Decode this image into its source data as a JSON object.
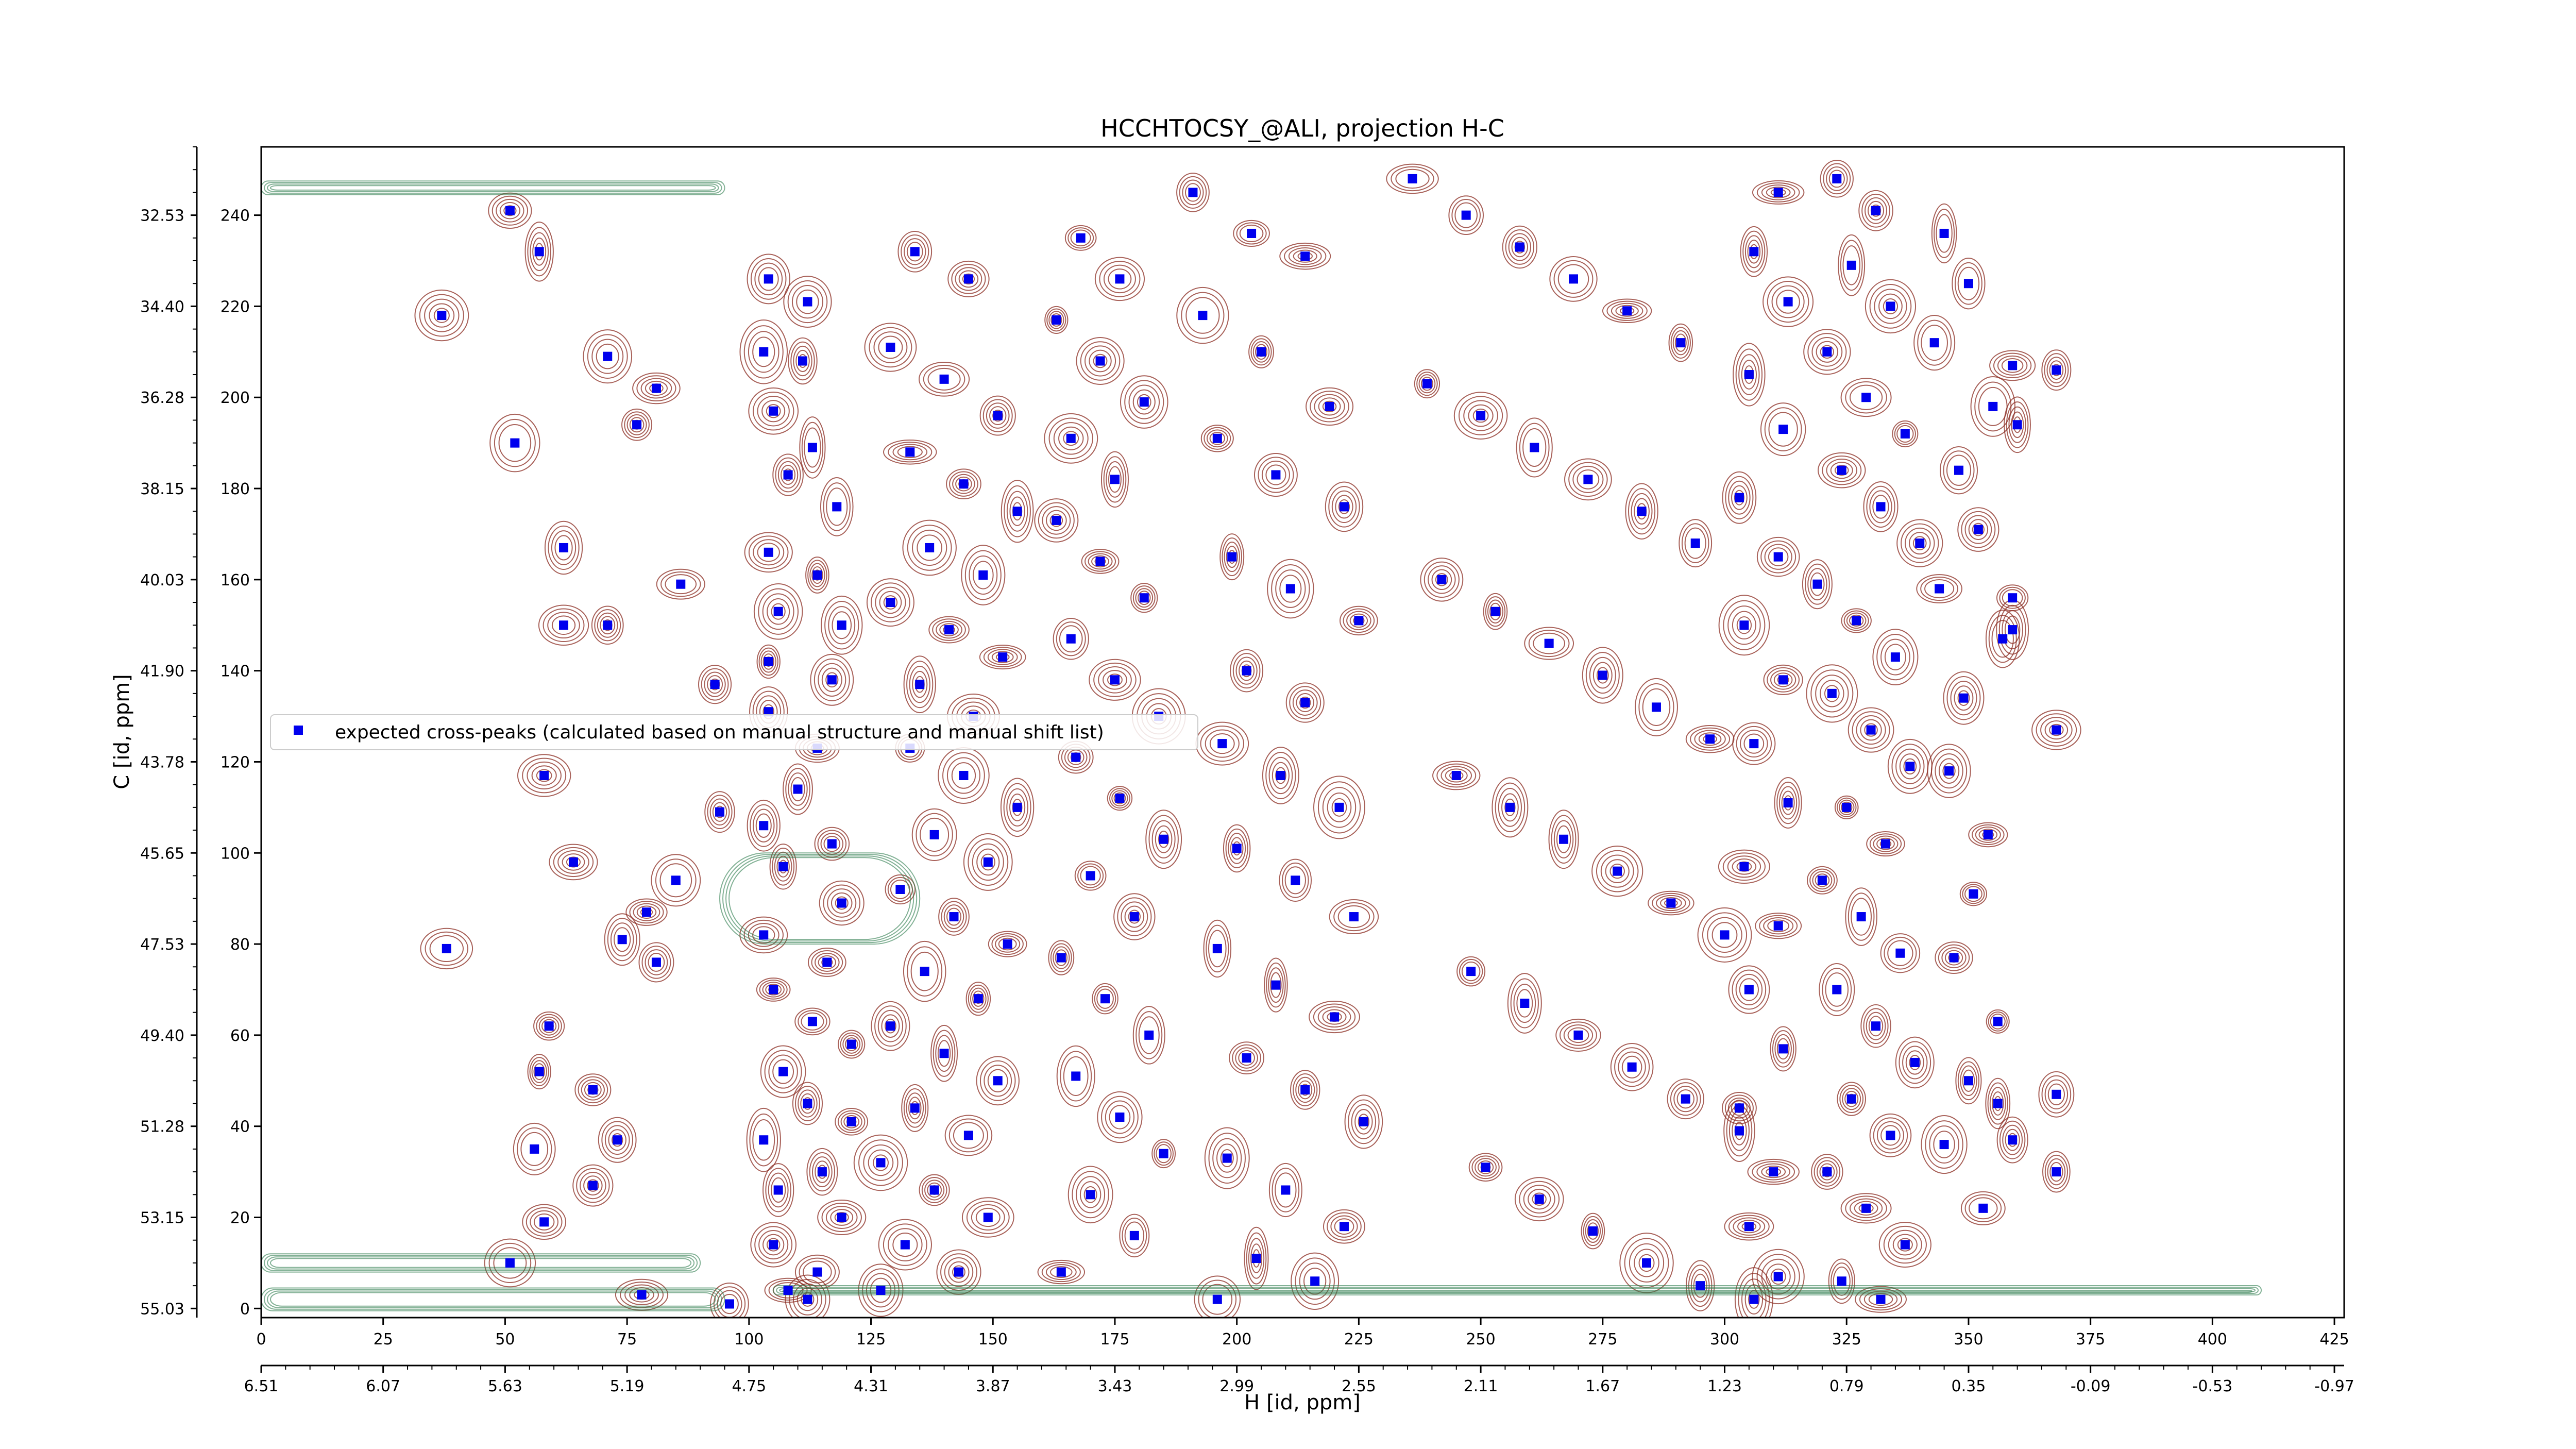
{
  "chart_data": {
    "type": "scatter",
    "title": "HCCHTOCSY_@ALI, projection H-C",
    "xlabel": "H [id, ppm]",
    "ylabel": "C [id, ppm]",
    "xlim": [
      0,
      427
    ],
    "ylim": [
      -2,
      255
    ],
    "x_ticks": [
      "0",
      "25",
      "50",
      "75",
      "100",
      "125",
      "150",
      "175",
      "200",
      "225",
      "250",
      "275",
      "300",
      "325",
      "350",
      "375",
      "400",
      "425"
    ],
    "y_ticks": [
      "0",
      "20",
      "40",
      "60",
      "80",
      "100",
      "120",
      "140",
      "160",
      "180",
      "200",
      "220",
      "240"
    ],
    "y_ppm_ticks": [
      "55.03",
      "53.15",
      "51.28",
      "49.40",
      "47.53",
      "45.65",
      "43.78",
      "41.90",
      "40.03",
      "38.15",
      "36.28",
      "34.40",
      "32.53"
    ],
    "x_ppm_ticks": [
      "6.51",
      "6.07",
      "5.63",
      "5.19",
      "4.75",
      "4.31",
      "3.87",
      "3.43",
      "2.99",
      "2.55",
      "2.11",
      "1.67",
      "1.23",
      "0.79",
      "0.35",
      "-0.09",
      "-0.53",
      "-0.97"
    ],
    "legend": {
      "placement": "center-left"
    },
    "grid": false,
    "contour_colors": {
      "positive": "#8b2c22",
      "negative": "#2e7d4f"
    },
    "series": [
      {
        "name": "expected cross-peaks (calculated based on manual structure and manual shift list)",
        "color": "#0000ee",
        "marker": "square",
        "points": [
          [
            51,
            241
          ],
          [
            37,
            218
          ],
          [
            57,
            232
          ],
          [
            71,
            209
          ],
          [
            81,
            202
          ],
          [
            77,
            194
          ],
          [
            52,
            190
          ],
          [
            62,
            167
          ],
          [
            71,
            150
          ],
          [
            62,
            150
          ],
          [
            86,
            159
          ],
          [
            93,
            137
          ],
          [
            58,
            117
          ],
          [
            94,
            109
          ],
          [
            64,
            98
          ],
          [
            85,
            94
          ],
          [
            79,
            87
          ],
          [
            74,
            81
          ],
          [
            81,
            76
          ],
          [
            38,
            79
          ],
          [
            59,
            62
          ],
          [
            57,
            52
          ],
          [
            68,
            48
          ],
          [
            73,
            37
          ],
          [
            56,
            35
          ],
          [
            68,
            27
          ],
          [
            58,
            19
          ],
          [
            78,
            3
          ],
          [
            51,
            10
          ],
          [
            104,
            226
          ],
          [
            112,
            221
          ],
          [
            103,
            210
          ],
          [
            111,
            208
          ],
          [
            105,
            197
          ],
          [
            113,
            189
          ],
          [
            108,
            183
          ],
          [
            118,
            176
          ],
          [
            104,
            166
          ],
          [
            114,
            161
          ],
          [
            106,
            153
          ],
          [
            119,
            150
          ],
          [
            104,
            142
          ],
          [
            117,
            138
          ],
          [
            104,
            131
          ],
          [
            114,
            123
          ],
          [
            110,
            114
          ],
          [
            103,
            106
          ],
          [
            117,
            102
          ],
          [
            107,
            97
          ],
          [
            119,
            89
          ],
          [
            103,
            82
          ],
          [
            116,
            76
          ],
          [
            105,
            70
          ],
          [
            113,
            63
          ],
          [
            121,
            58
          ],
          [
            107,
            52
          ],
          [
            112,
            45
          ],
          [
            121,
            41
          ],
          [
            103,
            37
          ],
          [
            115,
            30
          ],
          [
            106,
            26
          ],
          [
            119,
            20
          ],
          [
            105,
            14
          ],
          [
            114,
            8
          ],
          [
            108,
            4
          ],
          [
            96,
            1
          ],
          [
            112,
            2
          ],
          [
            134,
            232
          ],
          [
            145,
            226
          ],
          [
            129,
            211
          ],
          [
            140,
            204
          ],
          [
            151,
            196
          ],
          [
            133,
            188
          ],
          [
            144,
            181
          ],
          [
            155,
            175
          ],
          [
            137,
            167
          ],
          [
            148,
            161
          ],
          [
            129,
            155
          ],
          [
            141,
            149
          ],
          [
            152,
            143
          ],
          [
            135,
            137
          ],
          [
            146,
            130
          ],
          [
            133,
            123
          ],
          [
            144,
            117
          ],
          [
            155,
            110
          ],
          [
            138,
            104
          ],
          [
            149,
            98
          ],
          [
            131,
            92
          ],
          [
            142,
            86
          ],
          [
            153,
            80
          ],
          [
            136,
            74
          ],
          [
            147,
            68
          ],
          [
            129,
            62
          ],
          [
            140,
            56
          ],
          [
            151,
            50
          ],
          [
            134,
            44
          ],
          [
            145,
            38
          ],
          [
            127,
            32
          ],
          [
            138,
            26
          ],
          [
            149,
            20
          ],
          [
            132,
            14
          ],
          [
            143,
            8
          ],
          [
            127,
            4
          ],
          [
            168,
            235
          ],
          [
            176,
            226
          ],
          [
            163,
            217
          ],
          [
            172,
            208
          ],
          [
            181,
            199
          ],
          [
            166,
            191
          ],
          [
            175,
            182
          ],
          [
            163,
            173
          ],
          [
            172,
            164
          ],
          [
            181,
            156
          ],
          [
            166,
            147
          ],
          [
            175,
            138
          ],
          [
            184,
            130
          ],
          [
            167,
            121
          ],
          [
            176,
            112
          ],
          [
            185,
            103
          ],
          [
            170,
            95
          ],
          [
            179,
            86
          ],
          [
            164,
            77
          ],
          [
            173,
            68
          ],
          [
            182,
            60
          ],
          [
            167,
            51
          ],
          [
            176,
            42
          ],
          [
            185,
            34
          ],
          [
            170,
            25
          ],
          [
            179,
            16
          ],
          [
            164,
            8
          ],
          [
            191,
            245
          ],
          [
            203,
            236
          ],
          [
            214,
            231
          ],
          [
            193,
            218
          ],
          [
            205,
            210
          ],
          [
            219,
            198
          ],
          [
            196,
            191
          ],
          [
            208,
            183
          ],
          [
            222,
            176
          ],
          [
            199,
            165
          ],
          [
            211,
            158
          ],
          [
            225,
            151
          ],
          [
            202,
            140
          ],
          [
            214,
            133
          ],
          [
            197,
            124
          ],
          [
            209,
            117
          ],
          [
            221,
            110
          ],
          [
            200,
            101
          ],
          [
            212,
            94
          ],
          [
            224,
            86
          ],
          [
            196,
            79
          ],
          [
            208,
            71
          ],
          [
            220,
            64
          ],
          [
            202,
            55
          ],
          [
            214,
            48
          ],
          [
            226,
            41
          ],
          [
            198,
            33
          ],
          [
            210,
            26
          ],
          [
            222,
            18
          ],
          [
            204,
            11
          ],
          [
            216,
            6
          ],
          [
            196,
            2
          ],
          [
            236,
            248
          ],
          [
            247,
            240
          ],
          [
            258,
            233
          ],
          [
            269,
            226
          ],
          [
            280,
            219
          ],
          [
            291,
            212
          ],
          [
            239,
            203
          ],
          [
            250,
            196
          ],
          [
            261,
            189
          ],
          [
            272,
            182
          ],
          [
            283,
            175
          ],
          [
            294,
            168
          ],
          [
            242,
            160
          ],
          [
            253,
            153
          ],
          [
            264,
            146
          ],
          [
            275,
            139
          ],
          [
            286,
            132
          ],
          [
            297,
            125
          ],
          [
            245,
            117
          ],
          [
            256,
            110
          ],
          [
            267,
            103
          ],
          [
            278,
            96
          ],
          [
            289,
            89
          ],
          [
            300,
            82
          ],
          [
            248,
            74
          ],
          [
            259,
            67
          ],
          [
            270,
            60
          ],
          [
            281,
            53
          ],
          [
            292,
            46
          ],
          [
            303,
            39
          ],
          [
            251,
            31
          ],
          [
            262,
            24
          ],
          [
            273,
            17
          ],
          [
            284,
            10
          ],
          [
            295,
            5
          ],
          [
            306,
            2
          ],
          [
            311,
            245
          ],
          [
            306,
            232
          ],
          [
            313,
            221
          ],
          [
            305,
            205
          ],
          [
            312,
            193
          ],
          [
            303,
            178
          ],
          [
            311,
            165
          ],
          [
            304,
            150
          ],
          [
            312,
            138
          ],
          [
            306,
            124
          ],
          [
            313,
            111
          ],
          [
            304,
            97
          ],
          [
            311,
            84
          ],
          [
            305,
            70
          ],
          [
            312,
            57
          ],
          [
            303,
            44
          ],
          [
            310,
            30
          ],
          [
            305,
            18
          ],
          [
            311,
            7
          ],
          [
            323,
            248
          ],
          [
            331,
            241
          ],
          [
            326,
            229
          ],
          [
            334,
            220
          ],
          [
            321,
            210
          ],
          [
            329,
            200
          ],
          [
            337,
            192
          ],
          [
            324,
            184
          ],
          [
            332,
            176
          ],
          [
            340,
            168
          ],
          [
            319,
            159
          ],
          [
            327,
            151
          ],
          [
            335,
            143
          ],
          [
            322,
            135
          ],
          [
            330,
            127
          ],
          [
            338,
            119
          ],
          [
            325,
            110
          ],
          [
            333,
            102
          ],
          [
            320,
            94
          ],
          [
            328,
            86
          ],
          [
            336,
            78
          ],
          [
            323,
            70
          ],
          [
            331,
            62
          ],
          [
            339,
            54
          ],
          [
            326,
            46
          ],
          [
            334,
            38
          ],
          [
            321,
            30
          ],
          [
            329,
            22
          ],
          [
            337,
            14
          ],
          [
            324,
            6
          ],
          [
            332,
            2
          ],
          [
            345,
            236
          ],
          [
            350,
            225
          ],
          [
            343,
            212
          ],
          [
            355,
            198
          ],
          [
            348,
            184
          ],
          [
            352,
            171
          ],
          [
            344,
            158
          ],
          [
            357,
            147
          ],
          [
            349,
            134
          ],
          [
            346,
            118
          ],
          [
            354,
            104
          ],
          [
            351,
            91
          ],
          [
            347,
            77
          ],
          [
            356,
            63
          ],
          [
            350,
            50
          ],
          [
            345,
            36
          ],
          [
            353,
            22
          ],
          [
            359,
            207
          ],
          [
            360,
            194
          ],
          [
            359,
            156
          ],
          [
            359,
            149
          ],
          [
            368,
            206
          ],
          [
            368,
            127
          ],
          [
            368,
            47
          ],
          [
            368,
            30
          ],
          [
            356,
            45
          ],
          [
            359,
            37
          ]
        ]
      }
    ]
  }
}
